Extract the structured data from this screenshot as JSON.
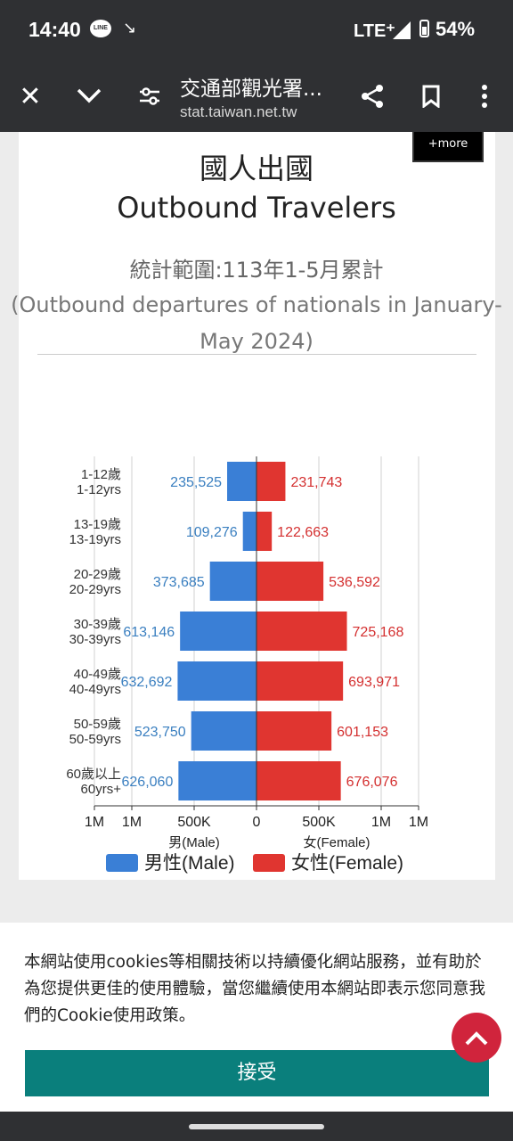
{
  "status_bar": {
    "time": "14:40",
    "network": "LTE⁺",
    "battery": "54%"
  },
  "toolbar": {
    "title": "交通部觀光署...",
    "url": "stat.taiwan.net.tw"
  },
  "page": {
    "more_label": "+more",
    "title_zh": "國人出國",
    "title_en": "Outbound Travelers",
    "range_zh": "統計範圍:113年1-5月累計",
    "range_en": "(Outbound departures of nationals in January-May 2024)"
  },
  "chart_data": {
    "type": "bar",
    "orientation": "horizontal-pyramid",
    "categories": [
      [
        "1-12歲",
        "1-12yrs"
      ],
      [
        "13-19歲",
        "13-19yrs"
      ],
      [
        "20-29歲",
        "20-29yrs"
      ],
      [
        "30-39歲",
        "30-39yrs"
      ],
      [
        "40-49歲",
        "40-49yrs"
      ],
      [
        "50-59歲",
        "50-59yrs"
      ],
      [
        "60歲以上",
        "60yrs+"
      ]
    ],
    "series": [
      {
        "name": "男性(Male)",
        "color": "#3a7fd6",
        "label_color": "#3a7fc0",
        "values": [
          235525,
          109276,
          373685,
          613146,
          632692,
          523750,
          626060
        ],
        "labels": [
          "235,525",
          "109,276",
          "373,685",
          "613,146",
          "632,692",
          "523,750",
          "626,060"
        ]
      },
      {
        "name": "女性(Female)",
        "color": "#e03530",
        "label_color": "#d43030",
        "values": [
          231743,
          122663,
          536592,
          725168,
          693971,
          601153,
          676076
        ],
        "labels": [
          "231,743",
          "122,663",
          "536,592",
          "725,168",
          "693,971",
          "601,153",
          "676,076"
        ]
      }
    ],
    "x_ticks": [
      "1M",
      "1M",
      "500K",
      "0",
      "500K",
      "1M",
      "1M"
    ],
    "x_tick_values": [
      -1300000,
      -1000000,
      -500000,
      0,
      500000,
      1000000,
      1300000
    ],
    "xlim": [
      -1300000,
      1300000
    ],
    "xlabel_left": "男(Male)",
    "xlabel_right": "女(Female)",
    "grid": true,
    "legend": "bottom"
  },
  "cookie": {
    "text": "本網站使用cookies等相關技術以持續優化網站服務，並有助於為您提供更佳的使用體驗，當您繼續使用本網站即表示您同意我們的Cookie使用政策。",
    "accept": "接受"
  }
}
